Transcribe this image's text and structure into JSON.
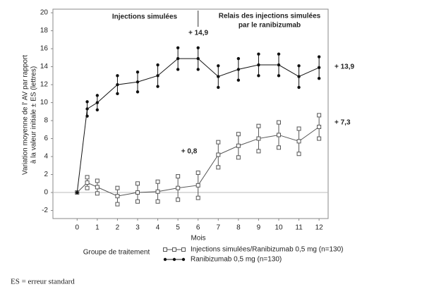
{
  "chart_data": {
    "type": "line",
    "header_left": "Injections simulées",
    "header_right": [
      "Relais des injections simulées",
      "par le ranibizumab"
    ],
    "y_label": [
      "Variation moyenne de l' AV par rapport",
      "à la valeur initiale ± ES (lettres)"
    ],
    "x_label": "Mois",
    "legend_title": "Groupe de traitement",
    "footnote": "ES = erreur standard",
    "annotations": [
      "+ 14,9",
      "+ 13,9",
      "+ 7,3",
      "+ 0,8"
    ],
    "x": [
      0,
      0.5,
      1,
      2,
      3,
      4,
      5,
      6,
      7,
      8,
      9,
      10,
      11,
      12
    ],
    "series": [
      {
        "name": "Injections simulées/Ranibizumab 0,5 mg (n=130)",
        "color": "#555555",
        "marker": "square",
        "values": [
          0,
          1.1,
          0.6,
          -0.4,
          0,
          0.1,
          0.5,
          0.8,
          4.2,
          5.2,
          6.0,
          6.4,
          5.7,
          7.3
        ],
        "errors": [
          0,
          0.6,
          0.7,
          0.9,
          1.0,
          1.1,
          1.3,
          1.4,
          1.4,
          1.3,
          1.4,
          1.4,
          1.4,
          1.3
        ]
      },
      {
        "name": "Ranibizumab 0,5 mg (n=130)",
        "color": "#111111",
        "marker": "dot",
        "values": [
          0,
          9.3,
          10.0,
          12.0,
          12.3,
          13.0,
          14.9,
          14.9,
          12.9,
          13.7,
          14.2,
          14.2,
          12.9,
          13.9
        ],
        "errors": [
          0,
          0.8,
          0.8,
          1.0,
          1.1,
          1.2,
          1.2,
          1.2,
          1.2,
          1.2,
          1.2,
          1.2,
          1.2,
          1.2
        ]
      }
    ],
    "xlim": [
      -1.2,
      12.45
    ],
    "xticks": [
      0,
      1,
      2,
      3,
      4,
      5,
      6,
      7,
      8,
      9,
      10,
      11,
      12
    ],
    "ylim": [
      -2.9,
      20.4
    ],
    "yticks": [
      -2,
      0,
      2,
      4,
      6,
      8,
      10,
      12,
      14,
      16,
      18,
      20
    ]
  }
}
